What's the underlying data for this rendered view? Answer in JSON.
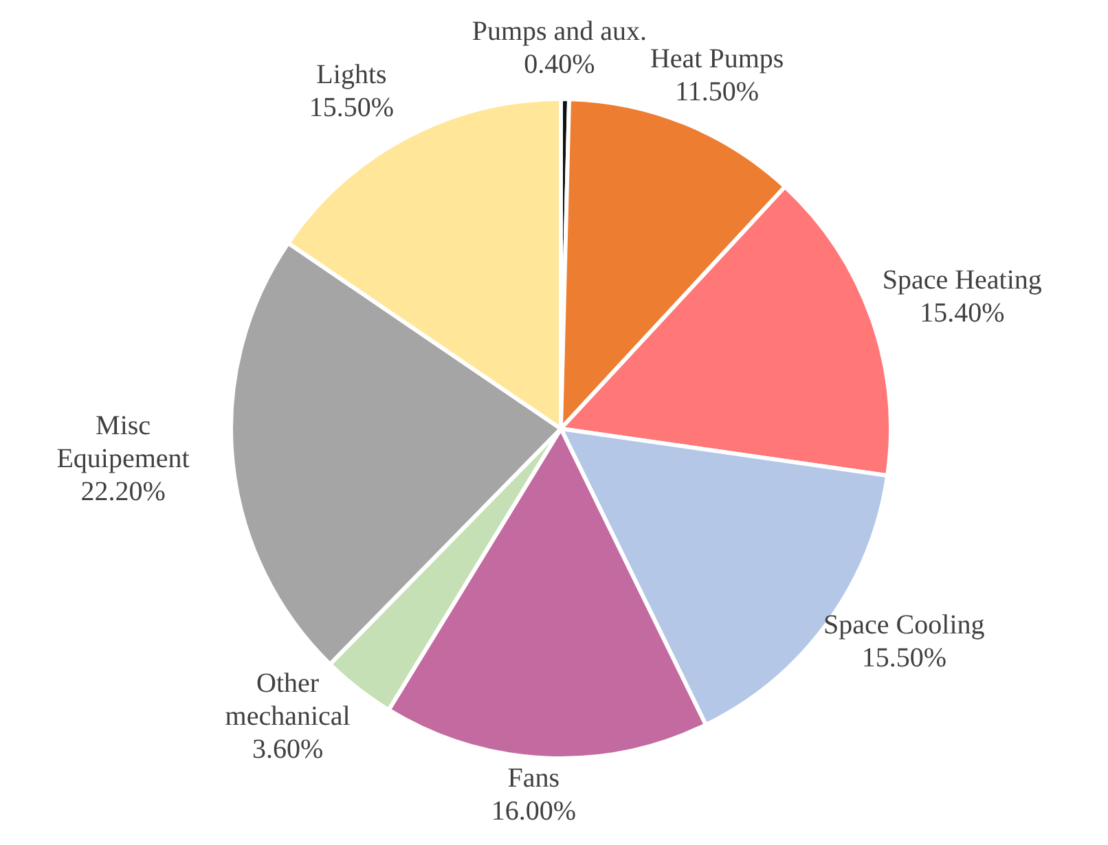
{
  "chart_data": {
    "type": "pie",
    "categories": [
      "Pumps and aux.",
      "Heat Pumps",
      "Space Heating",
      "Space Cooling",
      "Fans",
      "Other mechanical",
      "Misc Equipement",
      "Lights"
    ],
    "values": [
      0.4,
      11.5,
      15.4,
      15.5,
      16.0,
      3.6,
      22.2,
      15.5
    ],
    "value_labels": [
      "0.40%",
      "11.50%",
      "15.40%",
      "15.50%",
      "16.00%",
      "3.60%",
      "22.20%",
      "15.50%"
    ],
    "colors": [
      "#111111",
      "#ed7d31",
      "#ff7777",
      "#b4c7e7",
      "#c36ba0",
      "#c5e0b4",
      "#a5a5a5",
      "#ffe699"
    ],
    "legend": false
  }
}
